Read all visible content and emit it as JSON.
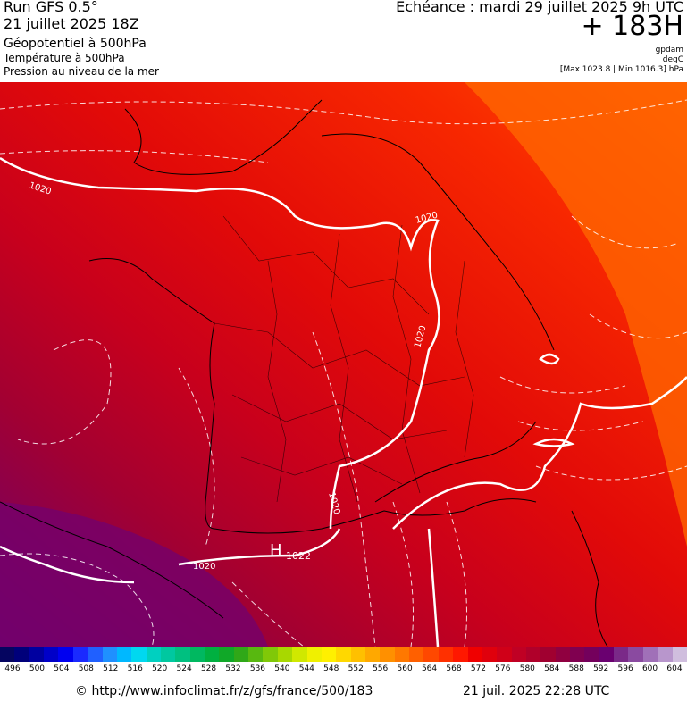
{
  "header": {
    "run": "Run GFS 0.5°",
    "run_date": "21 juillet 2025 18Z",
    "geopotential": "Géopotentiel à 500hPa",
    "temperature": "Température à 500hPa",
    "pressure": "Pression au niveau de la mer",
    "echeance": "Echéance : mardi 29 juillet 2025 9h UTC",
    "hour": "+ 183H",
    "unit_geo": "gpdam",
    "unit_temp": "degC",
    "maxmin": "[Max 1023.8 | Min 1016.3] hPa"
  },
  "map": {
    "isobar_labels": [
      {
        "text": "1020"
      },
      {
        "text": "1020"
      },
      {
        "text": "1020"
      },
      {
        "text": "1020"
      },
      {
        "text": "1020"
      }
    ],
    "high_label": "H",
    "high_value": "1022",
    "colors": {
      "orange": "#ff5a00",
      "red": "#f31400",
      "deep_red": "#d4001a",
      "crimson": "#a8002e",
      "purple": "#6a0070"
    }
  },
  "scale": {
    "colors": [
      "#050560",
      "#00007a",
      "#0000a0",
      "#0000c8",
      "#0000f0",
      "#1a2aff",
      "#2060ff",
      "#1f90ff",
      "#00b8ff",
      "#00d8f0",
      "#00d0c0",
      "#00c8a0",
      "#00c080",
      "#00b860",
      "#00b040",
      "#10a828",
      "#30a818",
      "#58b810",
      "#80c808",
      "#a8d800",
      "#d0e800",
      "#f0f000",
      "#fff000",
      "#ffd800",
      "#ffc000",
      "#ffa800",
      "#ff9000",
      "#ff7800",
      "#ff6000",
      "#ff4800",
      "#ff3000",
      "#ff1800",
      "#f00000",
      "#e0000c",
      "#d00018",
      "#c00024",
      "#b0002a",
      "#a00030",
      "#900040",
      "#800050",
      "#74005c",
      "#6a0070",
      "#7a2a88",
      "#8a4aa0",
      "#a070b8",
      "#b896cc",
      "#d0bede"
    ],
    "labels": [
      "496",
      "500",
      "504",
      "508",
      "512",
      "516",
      "520",
      "524",
      "528",
      "532",
      "536",
      "540",
      "544",
      "548",
      "552",
      "556",
      "560",
      "564",
      "568",
      "572",
      "576",
      "580",
      "584",
      "588",
      "592",
      "596",
      "600",
      "604"
    ]
  },
  "footer": {
    "url": "© http://www.infoclimat.fr/z/gfs/france/500/183",
    "timestamp": "21 juil. 2025 22:28 UTC"
  }
}
